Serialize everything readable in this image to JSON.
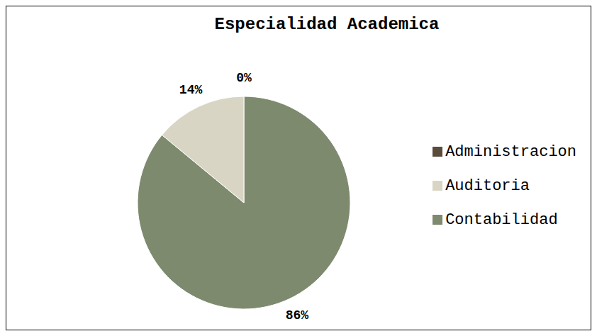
{
  "chart_data": {
    "type": "pie",
    "title": "Especialidad Academica",
    "categories": [
      "Contabilidad",
      "Auditoria",
      "Administracion"
    ],
    "values": [
      86,
      14,
      0
    ],
    "value_labels": [
      "86%",
      "14%",
      "0%"
    ],
    "colors": [
      "#7d8a6e",
      "#d9d5c5",
      "#5b4b3b"
    ],
    "data_labels": true,
    "legend": "right"
  }
}
